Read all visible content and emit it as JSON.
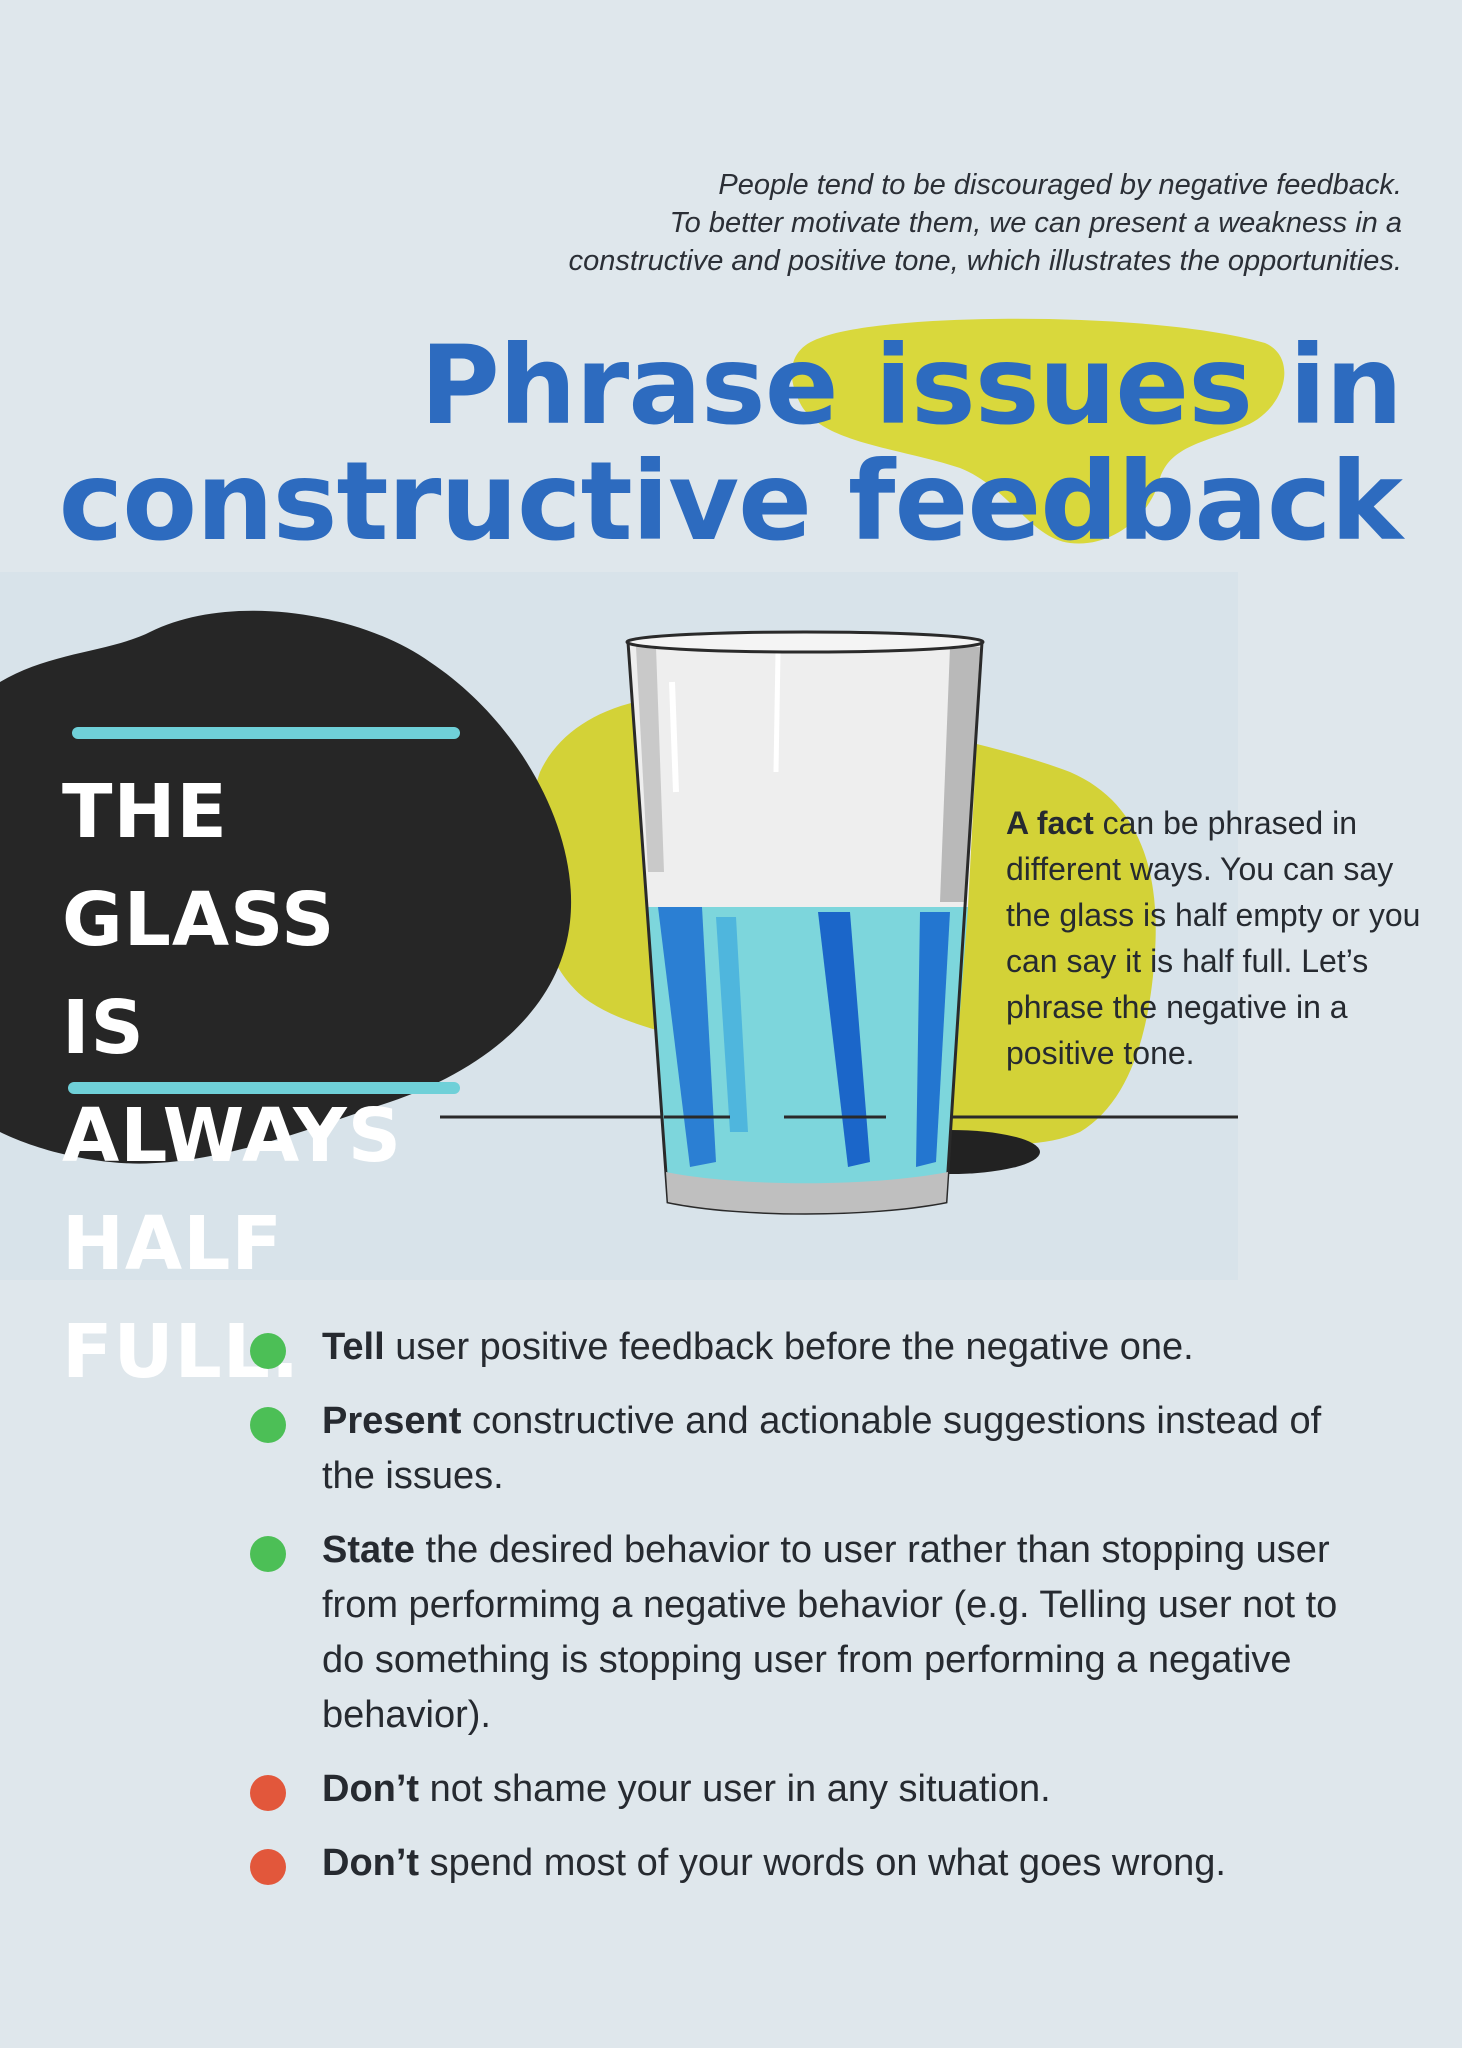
{
  "intro": {
    "lines": [
      "People tend to be discouraged by negative feedback.",
      "To better motivate them, we can present a weakness in a",
      "constructive and positive tone, which illustrates the opportunities."
    ]
  },
  "title": {
    "line1": "Phrase issues in",
    "line2": "constructive feedback"
  },
  "bubble": {
    "lines": [
      "THE GLASS",
      "IS ALWAYS",
      "HALF FULL."
    ]
  },
  "fact": {
    "lead": "A fact",
    "rest": " can be phrased in different ways. You can say the glass is half empty or you can say it is half full. Let’s phrase the negative in a positive tone."
  },
  "bullets": [
    {
      "lead": "Tell",
      "text": " user positive feedback before the negative one.",
      "status": "do"
    },
    {
      "lead": "Present",
      "text": " constructive and actionable suggestions instead of the issues.",
      "status": "do"
    },
    {
      "lead": "State",
      "text": " the desired behavior to user rather than stopping user from performimg a negative behavior (e.g. Telling user not to do something is stopping user from performing a negative behavior).",
      "status": "do"
    },
    {
      "lead": "Don’t",
      "text": " not shame your user in any situation.",
      "status": "dont"
    },
    {
      "lead": "Don’t",
      "text": " spend most of your words on what goes wrong.",
      "status": "dont"
    }
  ],
  "colors": {
    "background": "#dfe7ec",
    "title": "#2d6bbf",
    "highlight": "#d9d83c",
    "bubble": "#262626",
    "accent_line": "#6fd0d8",
    "do_dot": "#4cbf56",
    "dont_dot": "#e2573b"
  },
  "icons": {
    "do_marker": "green-dot-icon",
    "dont_marker": "red-dot-icon"
  }
}
